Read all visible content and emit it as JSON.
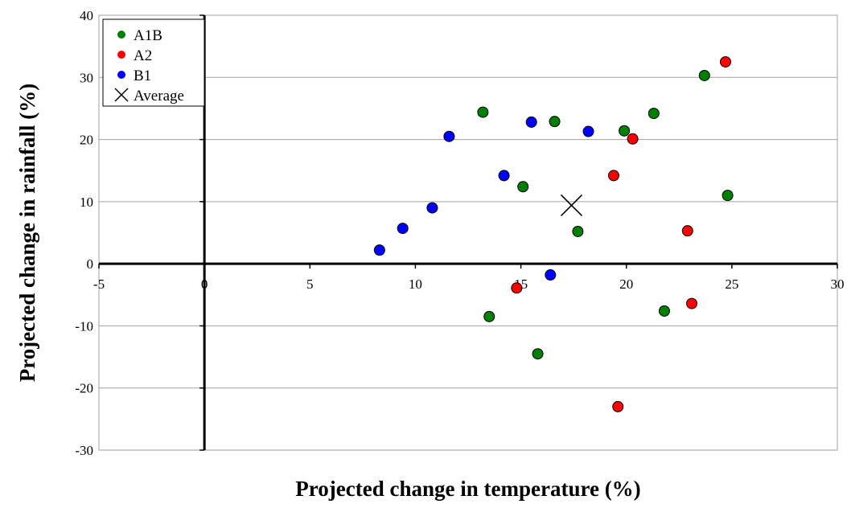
{
  "chart_data": {
    "type": "scatter",
    "xlabel": "Projected change in temperature (%)",
    "ylabel": "Projected change in rainfall (%)",
    "xlim": [
      -5,
      30
    ],
    "ylim": [
      -30,
      40
    ],
    "xticks": [
      -5,
      0,
      5,
      10,
      15,
      20,
      25,
      30
    ],
    "yticks": [
      -30,
      -20,
      -10,
      0,
      10,
      20,
      30,
      40
    ],
    "grid": "horizontal",
    "legend_position": "top-left",
    "series": [
      {
        "name": "A1B",
        "color": "#008000",
        "marker": "circle",
        "points": [
          [
            13.2,
            24.4
          ],
          [
            16.6,
            22.9
          ],
          [
            21.3,
            24.2
          ],
          [
            19.9,
            21.4
          ],
          [
            23.7,
            30.3
          ],
          [
            15.1,
            12.4
          ],
          [
            17.7,
            5.2
          ],
          [
            24.8,
            11.0
          ],
          [
            13.5,
            -8.5
          ],
          [
            21.8,
            -7.6
          ],
          [
            15.8,
            -14.5
          ]
        ]
      },
      {
        "name": "A2",
        "color": "#ff0000",
        "marker": "circle",
        "points": [
          [
            24.7,
            32.5
          ],
          [
            20.3,
            20.1
          ],
          [
            19.4,
            14.2
          ],
          [
            22.9,
            5.3
          ],
          [
            14.8,
            -3.9
          ],
          [
            23.1,
            -6.4
          ],
          [
            19.6,
            -23.0
          ]
        ]
      },
      {
        "name": "B1",
        "color": "#0000ff",
        "marker": "circle",
        "points": [
          [
            11.6,
            20.5
          ],
          [
            15.5,
            22.8
          ],
          [
            18.2,
            21.3
          ],
          [
            14.2,
            14.2
          ],
          [
            10.8,
            9.0
          ],
          [
            9.4,
            5.7
          ],
          [
            8.3,
            2.2
          ],
          [
            16.4,
            -1.8
          ]
        ]
      },
      {
        "name": "Average",
        "color": "#000000",
        "marker": "x",
        "points": [
          [
            17.4,
            9.4
          ]
        ]
      }
    ]
  }
}
